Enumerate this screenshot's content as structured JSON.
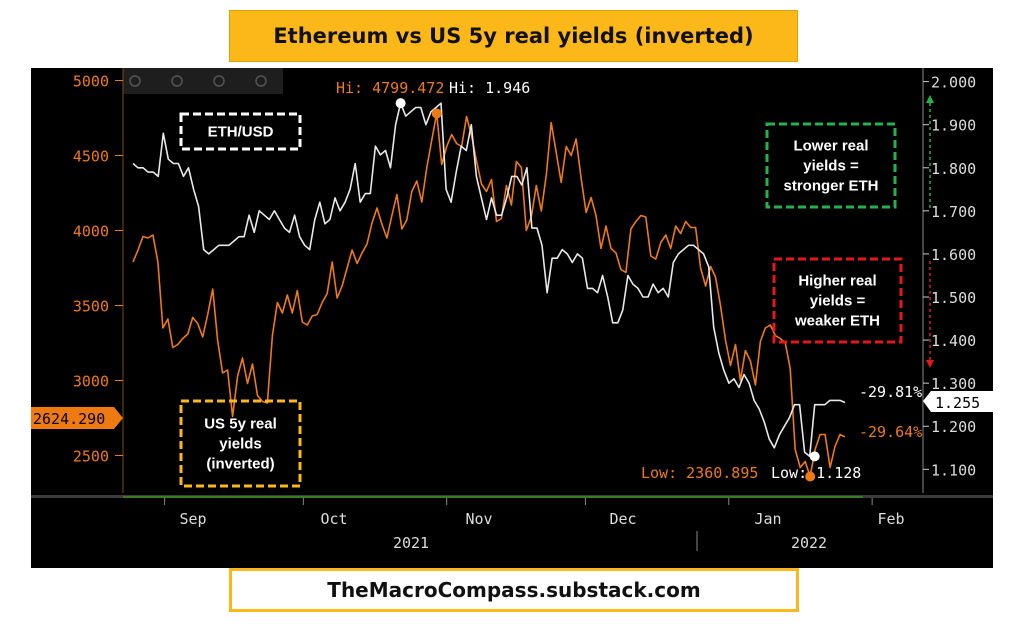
{
  "title": "Ethereum vs US 5y real yields (inverted)",
  "footer": "TheMacroCompass.substack.com",
  "colors": {
    "eth": "#e8e8e8",
    "yields": "#f07a12",
    "title_bg": "#fbb818",
    "green_box": "#23b24b",
    "red_box": "#e8161c",
    "orange_box": "#fbb818",
    "white_box": "#ffffff"
  },
  "annotations": {
    "eth_label": "ETH/USD",
    "yields_label": [
      "US 5y real",
      "yields",
      "(inverted)"
    ],
    "lower_box": [
      "Lower real",
      "yields =",
      "stronger ETH"
    ],
    "higher_box": [
      "Higher real",
      "yields =",
      "weaker ETH"
    ]
  },
  "labels": {
    "hi_eth": "Hi: 4799.472",
    "hi_yield": "Hi: 1.946",
    "low_eth": "Low: 2360.895",
    "low_yield": "Low: 1.128",
    "pct_white": "-29.81%",
    "pct_orange": "-29.64%",
    "last_eth": "2624.290",
    "last_yield": "1.255"
  },
  "chart_data": {
    "type": "line",
    "title": "Ethereum vs US 5y real yields (inverted)",
    "x_months": [
      "Sep",
      "Oct",
      "Nov",
      "Dec",
      "Jan",
      "Feb"
    ],
    "x_years": [
      "2021",
      "2022"
    ],
    "left_axis": {
      "label": "ETH/USD",
      "ticks": [
        5000,
        4500,
        4000,
        3500,
        3000,
        2500
      ],
      "ylim": [
        2250,
        5050
      ]
    },
    "right_axis": {
      "label": "US 5y real yields (inverted)",
      "ticks": [
        "2.000",
        "1.900",
        "1.800",
        "1.700",
        "1.600",
        "1.500",
        "1.400",
        "1.300",
        "1.200",
        "1.100"
      ],
      "ylim": [
        1.045,
        2.02
      ]
    },
    "series": [
      {
        "name": "ETH/USD",
        "axis": "left",
        "start": "2021-08-23",
        "values": [
          3790,
          3870,
          3960,
          3950,
          3970,
          3790,
          3350,
          3410,
          3220,
          3240,
          3280,
          3310,
          3420,
          3380,
          3290,
          3440,
          3610,
          3270,
          3050,
          3070,
          2760,
          3030,
          3150,
          2980,
          3110,
          2900,
          2860,
          2850,
          3300,
          3520,
          3450,
          3570,
          3450,
          3600,
          3390,
          3370,
          3430,
          3440,
          3520,
          3580,
          3790,
          3550,
          3630,
          3750,
          3870,
          3780,
          3850,
          3910,
          4050,
          4150,
          4040,
          3950,
          4100,
          4240,
          4010,
          4070,
          4260,
          4330,
          4190,
          4420,
          4600,
          4780,
          4440,
          4560,
          4640,
          4580,
          4560,
          4760,
          4630,
          4460,
          4310,
          4260,
          4340,
          4060,
          4080,
          4300,
          4170,
          4460,
          4420,
          4000,
          4090,
          4300,
          4130,
          4370,
          4720,
          4520,
          4320,
          4560,
          4500,
          4610,
          4350,
          4120,
          4220,
          4100,
          3880,
          4030,
          3880,
          3850,
          3740,
          3720,
          4010,
          4060,
          4100,
          4090,
          3830,
          3810,
          3920,
          3970,
          3880,
          4030,
          3980,
          4060,
          4020,
          4020,
          3750,
          3630,
          3760,
          3690,
          3500,
          3270,
          3100,
          3240,
          3000,
          3200,
          3130,
          2970,
          3260,
          3350,
          3370,
          3300,
          3280,
          3250,
          3080,
          2540,
          2420,
          2460,
          2360,
          2540,
          2640,
          2640,
          2420,
          2560,
          2640,
          2624
        ]
      },
      {
        "name": "US 5y real yields (inverted)",
        "axis": "right",
        "start": "2021-08-23",
        "values": [
          1.81,
          1.8,
          1.8,
          1.79,
          1.79,
          1.78,
          1.88,
          1.82,
          1.81,
          1.81,
          1.78,
          1.8,
          1.75,
          1.71,
          1.61,
          1.6,
          1.61,
          1.62,
          1.62,
          1.62,
          1.63,
          1.64,
          1.64,
          1.69,
          1.65,
          1.7,
          1.69,
          1.68,
          1.7,
          1.68,
          1.66,
          1.65,
          1.69,
          1.64,
          1.62,
          1.61,
          1.68,
          1.72,
          1.67,
          1.68,
          1.73,
          1.7,
          1.72,
          1.75,
          1.81,
          1.72,
          1.74,
          1.74,
          1.85,
          1.83,
          1.84,
          1.8,
          1.9,
          1.95,
          1.92,
          1.93,
          1.94,
          1.94,
          1.9,
          1.93,
          1.94,
          1.95,
          1.75,
          1.72,
          1.79,
          1.85,
          1.84,
          1.9,
          1.78,
          1.73,
          1.68,
          1.73,
          1.69,
          1.69,
          1.73,
          1.78,
          1.78,
          1.76,
          1.8,
          1.66,
          1.66,
          1.62,
          1.51,
          1.59,
          1.59,
          1.61,
          1.6,
          1.58,
          1.6,
          1.59,
          1.52,
          1.52,
          1.51,
          1.55,
          1.5,
          1.44,
          1.44,
          1.47,
          1.55,
          1.53,
          1.52,
          1.5,
          1.5,
          1.53,
          1.51,
          1.52,
          1.5,
          1.58,
          1.6,
          1.61,
          1.62,
          1.62,
          1.61,
          1.6,
          1.57,
          1.43,
          1.37,
          1.33,
          1.3,
          1.31,
          1.29,
          1.32,
          1.3,
          1.26,
          1.24,
          1.21,
          1.17,
          1.15,
          1.18,
          1.2,
          1.22,
          1.25,
          1.25,
          1.14,
          1.13,
          1.25,
          1.25,
          1.25,
          1.26,
          1.26,
          1.26,
          1.255
        ]
      }
    ]
  }
}
